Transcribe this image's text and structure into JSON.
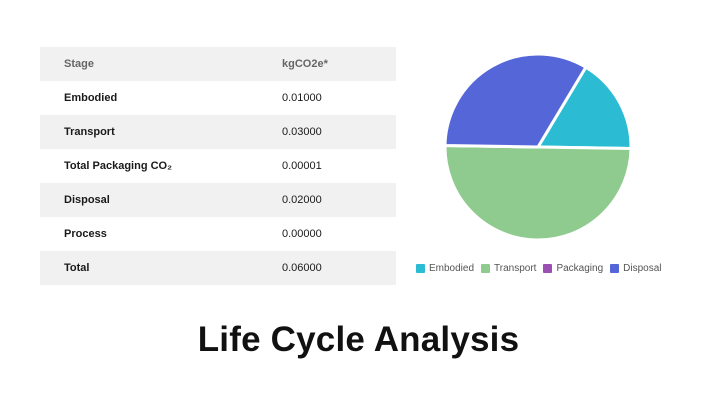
{
  "page": {
    "title": "Life Cycle Analysis"
  },
  "table": {
    "header": {
      "stage": "Stage",
      "value": "kgCO2e*"
    },
    "rows": [
      {
        "stage": "Embodied",
        "value": "0.01000"
      },
      {
        "stage": "Transport",
        "value": "0.03000"
      },
      {
        "stage": "Total Packaging CO₂",
        "value": "0.00001"
      },
      {
        "stage": "Disposal",
        "value": "0.02000"
      },
      {
        "stage": "Process",
        "value": "0.00000"
      },
      {
        "stage": "Total",
        "value": "0.06000"
      }
    ]
  },
  "chart_data": {
    "type": "pie",
    "title": "",
    "categories": [
      "Embodied",
      "Transport",
      "Packaging",
      "Disposal"
    ],
    "values": [
      0.01,
      0.03,
      1e-05,
      0.02
    ],
    "colors": [
      "#2bbcd4",
      "#8fcb8f",
      "#9b4fb3",
      "#5566d9"
    ],
    "legend_position": "bottom"
  }
}
